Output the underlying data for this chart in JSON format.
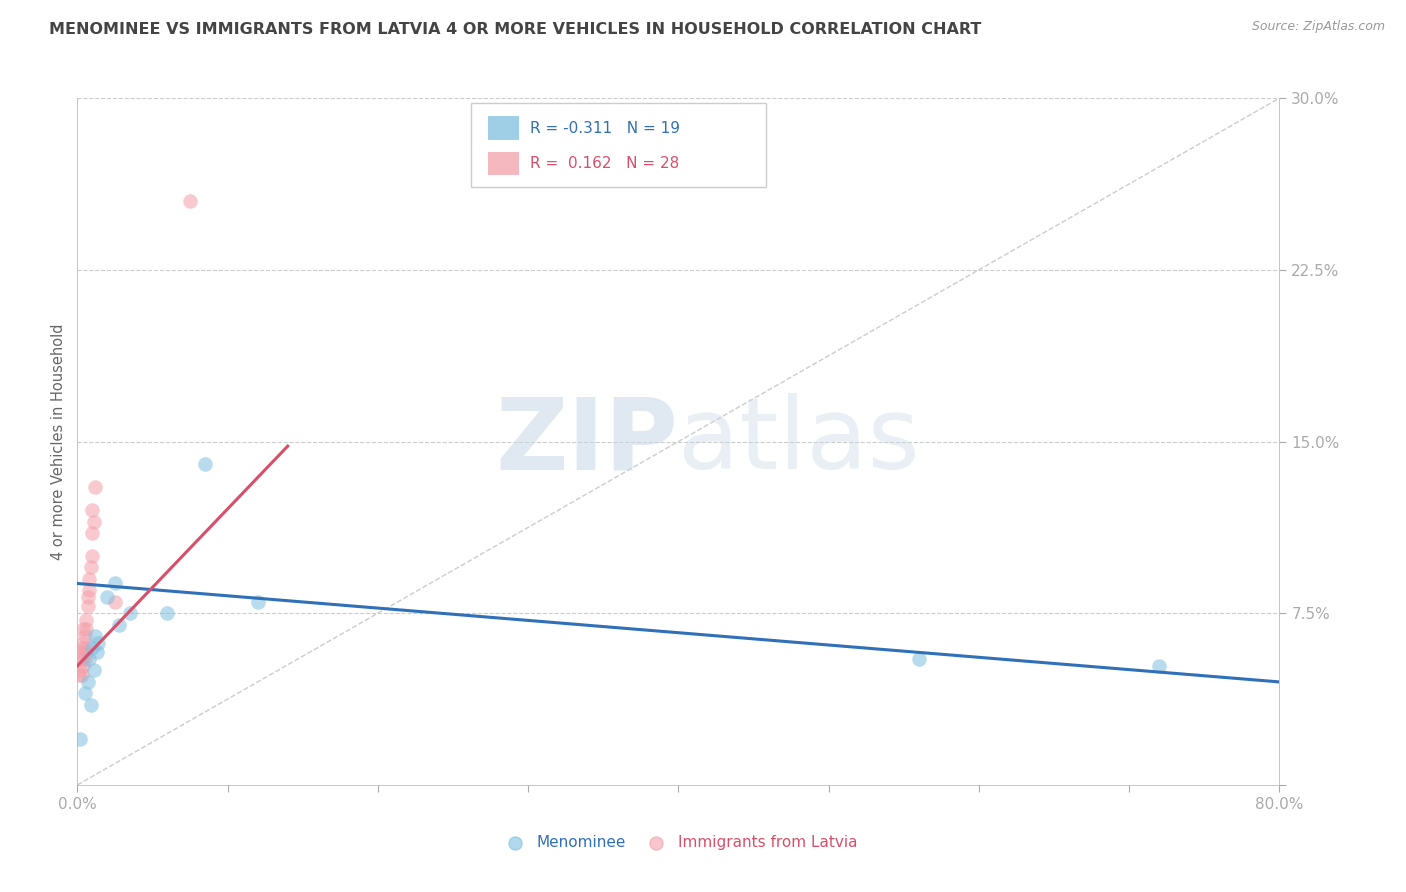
{
  "title": "MENOMINEE VS IMMIGRANTS FROM LATVIA 4 OR MORE VEHICLES IN HOUSEHOLD CORRELATION CHART",
  "source_text": "Source: ZipAtlas.com",
  "ylabel": "4 or more Vehicles in Household",
  "xlim": [
    0.0,
    0.8
  ],
  "ylim": [
    0.0,
    0.3
  ],
  "xticks": [
    0.0,
    0.1,
    0.2,
    0.3,
    0.4,
    0.5,
    0.6,
    0.7,
    0.8
  ],
  "xticklabels": [
    "0.0%",
    "",
    "",
    "",
    "",
    "",
    "",
    "",
    "80.0%"
  ],
  "yticks": [
    0.0,
    0.075,
    0.15,
    0.225,
    0.3
  ],
  "yticklabels_right": [
    "",
    "7.5%",
    "15.0%",
    "22.5%",
    "30.0%"
  ],
  "watermark_zip": "ZIP",
  "watermark_atlas": "atlas",
  "legend_r1": "R = -0.311",
  "legend_n1": "N = 19",
  "legend_r2": "R =  0.162",
  "legend_n2": "N = 28",
  "blue_color": "#7fbfdf",
  "pink_color": "#f4a0aa",
  "blue_line_color": "#3070b8",
  "pink_line_color": "#d94f6a",
  "diag_line_color": "#cccccc",
  "grid_color": "#cccccc",
  "title_color": "#444444",
  "axis_label_color": "#666666",
  "tick_label_color": "#5599cc",
  "menominee_x": [
    0.002,
    0.005,
    0.007,
    0.008,
    0.009,
    0.01,
    0.011,
    0.012,
    0.013,
    0.014,
    0.02,
    0.025,
    0.028,
    0.035,
    0.06,
    0.085,
    0.12,
    0.56,
    0.72
  ],
  "menominee_y": [
    0.02,
    0.04,
    0.045,
    0.055,
    0.035,
    0.06,
    0.05,
    0.065,
    0.058,
    0.062,
    0.082,
    0.088,
    0.07,
    0.075,
    0.075,
    0.14,
    0.08,
    0.055,
    0.052
  ],
  "latvia_x": [
    0.001,
    0.002,
    0.002,
    0.003,
    0.003,
    0.003,
    0.004,
    0.004,
    0.004,
    0.004,
    0.005,
    0.005,
    0.005,
    0.006,
    0.006,
    0.006,
    0.007,
    0.007,
    0.008,
    0.008,
    0.009,
    0.01,
    0.01,
    0.01,
    0.011,
    0.012,
    0.025,
    0.075
  ],
  "latvia_y": [
    0.048,
    0.05,
    0.055,
    0.048,
    0.055,
    0.06,
    0.052,
    0.058,
    0.062,
    0.068,
    0.055,
    0.06,
    0.065,
    0.058,
    0.068,
    0.072,
    0.078,
    0.082,
    0.085,
    0.09,
    0.095,
    0.1,
    0.11,
    0.12,
    0.115,
    0.13,
    0.08,
    0.255
  ],
  "blue_trend_x0": 0.0,
  "blue_trend_y0": 0.088,
  "blue_trend_x1": 0.8,
  "blue_trend_y1": 0.045,
  "pink_trend_x0": 0.0,
  "pink_trend_y0": 0.052,
  "pink_trend_x1": 0.14,
  "pink_trend_y1": 0.148
}
